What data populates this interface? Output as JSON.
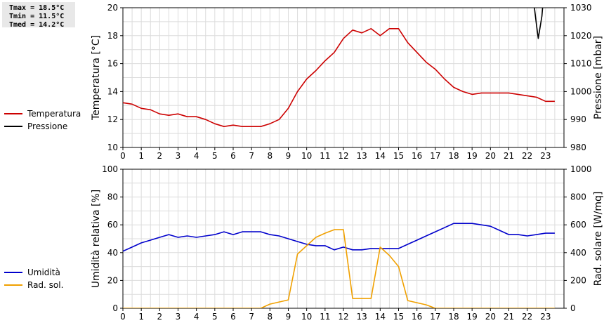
{
  "stats": {
    "tmax": "Tmax = 18.5°C",
    "tmin": "Tmin = 11.5°C",
    "tmed": "Tmed = 14.2°C"
  },
  "chart_data": [
    {
      "type": "line",
      "ylabel_left": "Temperatura [°C]",
      "ylabel_right": "Pressione [mbar]",
      "ylim_left": [
        10,
        20
      ],
      "ylim_right": [
        980,
        1030
      ],
      "yticks_left": [
        10,
        12,
        14,
        16,
        18,
        20
      ],
      "yticks_right": [
        980,
        990,
        1000,
        1010,
        1020,
        1030
      ],
      "xlim": [
        0,
        24
      ],
      "xticks": [
        0,
        1,
        2,
        3,
        4,
        5,
        6,
        7,
        8,
        9,
        10,
        11,
        12,
        13,
        14,
        15,
        16,
        17,
        18,
        19,
        20,
        21,
        22,
        23
      ],
      "grid": true,
      "legend_position": "left",
      "series": [
        {
          "name": "Temperatura",
          "color": "#cc0000",
          "axis": "left",
          "x": [
            0,
            0.5,
            1,
            1.5,
            2,
            2.5,
            3,
            3.5,
            4,
            4.5,
            5,
            5.5,
            6,
            6.5,
            7,
            7.5,
            8,
            8.5,
            9,
            9.5,
            10,
            10.5,
            11,
            11.5,
            12,
            12.5,
            13,
            13.5,
            14,
            14.5,
            15,
            15.5,
            16,
            16.5,
            17,
            17.5,
            18,
            18.5,
            19,
            19.5,
            20,
            20.5,
            21,
            21.5,
            22,
            22.5,
            23,
            23.5
          ],
          "y": [
            13.2,
            13.1,
            12.8,
            12.7,
            12.4,
            12.3,
            12.4,
            12.2,
            12.2,
            12.0,
            11.7,
            11.5,
            11.6,
            11.5,
            11.5,
            11.5,
            11.7,
            12.0,
            12.8,
            14.0,
            14.9,
            15.5,
            16.2,
            16.8,
            17.8,
            18.4,
            18.2,
            18.5,
            18.0,
            18.5,
            18.5,
            17.5,
            16.8,
            16.1,
            15.6,
            14.9,
            14.3,
            14.0,
            13.8,
            13.9,
            13.9,
            13.9,
            13.9,
            13.8,
            13.7,
            13.6,
            13.3,
            13.3
          ]
        },
        {
          "name": "Pressione",
          "color": "#000000",
          "axis": "right",
          "x": [
            22.3,
            22.5,
            22.6,
            22.8,
            22.9
          ],
          "y": [
            1035,
            1024,
            1019,
            1027,
            1035
          ]
        }
      ]
    },
    {
      "type": "line",
      "ylabel_left": "Umidità relativa [%]",
      "ylabel_right": "Rad. solare [W/mq]",
      "ylim_left": [
        0,
        100
      ],
      "ylim_right": [
        0,
        1000
      ],
      "yticks_left": [
        0,
        20,
        40,
        60,
        80,
        100
      ],
      "yticks_right": [
        0,
        200,
        400,
        600,
        800,
        1000
      ],
      "xlim": [
        0,
        24
      ],
      "xticks": [
        0,
        1,
        2,
        3,
        4,
        5,
        6,
        7,
        8,
        9,
        10,
        11,
        12,
        13,
        14,
        15,
        16,
        17,
        18,
        19,
        20,
        21,
        22,
        23
      ],
      "grid": true,
      "legend_position": "left",
      "series": [
        {
          "name": "Umidità",
          "color": "#0000cc",
          "axis": "left",
          "x": [
            0,
            0.5,
            1,
            1.5,
            2,
            2.5,
            3,
            3.5,
            4,
            4.5,
            5,
            5.5,
            6,
            6.5,
            7,
            7.5,
            8,
            8.5,
            9,
            9.5,
            10,
            10.5,
            11,
            11.5,
            12,
            12.5,
            13,
            13.5,
            14,
            14.5,
            15,
            15.5,
            16,
            16.5,
            17,
            17.5,
            18,
            18.5,
            19,
            19.5,
            20,
            20.5,
            21,
            21.5,
            22,
            22.5,
            23,
            23.5
          ],
          "y": [
            41,
            44,
            47,
            49,
            51,
            53,
            51,
            52,
            51,
            52,
            53,
            55,
            53,
            55,
            55,
            55,
            53,
            52,
            50,
            48,
            46,
            45,
            45,
            42,
            44,
            42,
            42,
            43,
            43,
            43,
            43,
            46,
            49,
            52,
            55,
            58,
            61,
            61,
            61,
            60,
            59,
            56,
            53,
            53,
            52,
            53,
            54,
            54
          ]
        },
        {
          "name": "Rad. sol.",
          "color": "#f0a000",
          "axis": "right",
          "x": [
            0,
            7.5,
            8,
            8.5,
            9,
            9.5,
            10,
            10.5,
            11,
            11.5,
            12,
            12.5,
            13,
            13.5,
            14,
            14.5,
            15,
            15.5,
            16,
            16.5,
            17,
            23.5
          ],
          "y": [
            0,
            0,
            30,
            45,
            60,
            390,
            450,
            510,
            540,
            565,
            565,
            70,
            70,
            70,
            440,
            380,
            300,
            55,
            40,
            25,
            0,
            0
          ]
        }
      ]
    }
  ]
}
